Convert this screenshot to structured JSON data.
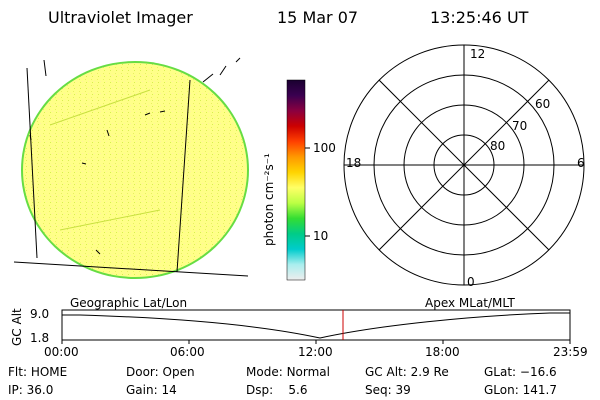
{
  "header": {
    "instrument": "Ultraviolet Imager",
    "date": "15 Mar 07",
    "time": "13:25:46 UT"
  },
  "colorbar": {
    "unit_label": "photon cm⁻²s⁻¹",
    "tick_labels": [
      "100",
      "10"
    ],
    "stops": [
      "#1a0030",
      "#3a0050",
      "#8a0040",
      "#cc0000",
      "#ff4000",
      "#ff9900",
      "#ffd400",
      "#ffff66",
      "#bbff44",
      "#33dd33",
      "#00cc88",
      "#00cccc",
      "#aaeeee",
      "#eeeeee"
    ]
  },
  "polar_plot": {
    "mlt_labels": {
      "top": "12",
      "left": "18",
      "right": "6",
      "bottom": "0"
    },
    "lat_labels": [
      "60",
      "70",
      "80"
    ]
  },
  "labels": {
    "geographic": "Geographic Lat/Lon",
    "apex": "Apex MLat/MLT"
  },
  "altitude_plot": {
    "axis_label": "GC Alt",
    "y_ticks": [
      "9.0",
      "1.8"
    ],
    "x_ticks": [
      "00:00",
      "06:00",
      "12:00",
      "18:00",
      "23:59"
    ]
  },
  "info": {
    "row1": [
      {
        "key": "Flt:",
        "value": "HOME"
      },
      {
        "key": "Door:",
        "value": "Open"
      },
      {
        "key": "Mode:",
        "value": "Normal"
      },
      {
        "key": "GC Alt:",
        "value": "2.9 Re"
      },
      {
        "key": "GLat:",
        "value": "−16.6"
      }
    ],
    "row2": [
      {
        "key": "IP:",
        "value": "36.0"
      },
      {
        "key": "Gain:",
        "value": "14"
      },
      {
        "key": "Dsp:",
        "value": "5.6"
      },
      {
        "key": "Seq:",
        "value": "39"
      },
      {
        "key": "GLon:",
        "value": "141.7"
      }
    ]
  }
}
